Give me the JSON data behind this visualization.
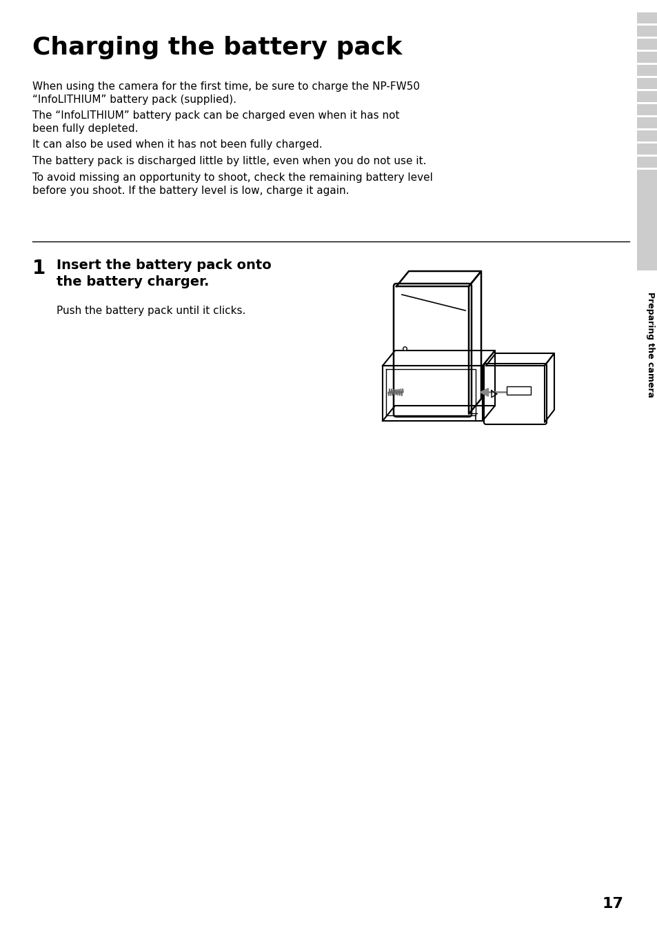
{
  "title": "Charging the battery pack",
  "body_paragraphs": [
    "When using the camera for the first time, be sure to charge the NP-FW50\n“InfoLITHIUM” battery pack (supplied).",
    "The “InfoLITHIUM” battery pack can be charged even when it has not\nbeen fully depleted.",
    "It can also be used when it has not been fully charged.",
    "The battery pack is discharged little by little, even when you do not use it.",
    "To avoid missing an opportunity to shoot, check the remaining battery level\nbefore you shoot. If the battery level is low, charge it again."
  ],
  "step_number": "1",
  "step_title": "Insert the battery pack onto\nthe battery charger.",
  "step_body": "Push the battery pack until it clicks.",
  "sidebar_text": "Preparing the camera",
  "page_number": "17",
  "bg_color": "#ffffff",
  "text_color": "#000000",
  "tab_color": "#cccccc",
  "sidebar_gray": "#cccccc"
}
